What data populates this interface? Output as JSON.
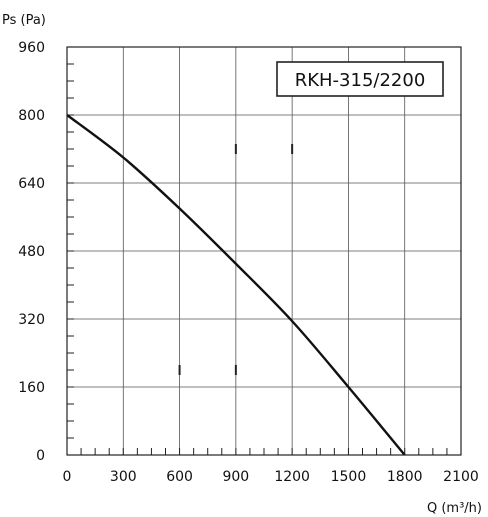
{
  "chart_data": {
    "type": "line",
    "title": "RKH-315/2200",
    "xlabel": "Q (m³/h)",
    "ylabel": "Ps (Pa)",
    "xlim": [
      0,
      2100
    ],
    "ylim": [
      0,
      960
    ],
    "x_ticks": [
      "0",
      "300",
      "600",
      "900",
      "1200",
      "1500",
      "1800",
      "2100"
    ],
    "y_ticks": [
      "0",
      "160",
      "320",
      "480",
      "640",
      "800",
      "960"
    ],
    "grid": true,
    "series": [
      {
        "x": [
          0,
          300,
          600,
          900,
          1200,
          1500,
          1800
        ],
        "y": [
          800,
          700,
          580,
          450,
          315,
          160,
          0
        ]
      }
    ]
  }
}
